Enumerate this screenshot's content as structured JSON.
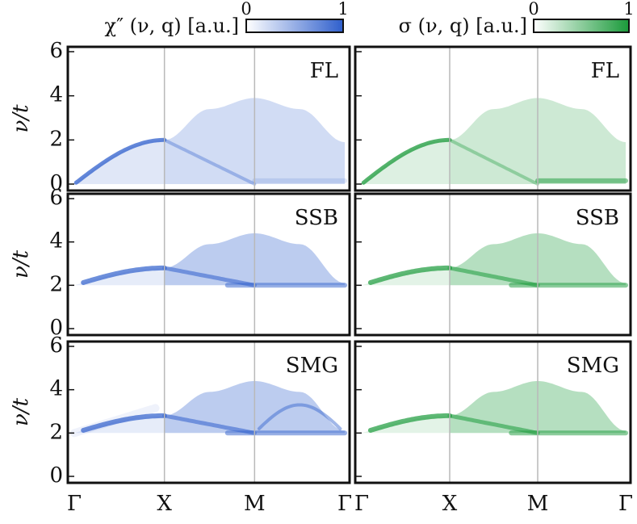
{
  "figure": {
    "colorbars": [
      {
        "title": "χ″ (ν, q) [a.u.]",
        "min_label": "0",
        "max_label": "1",
        "colors": [
          "#ffffff",
          "#2f5fcc"
        ]
      },
      {
        "title": "σ (ν, q) [a.u.]",
        "min_label": "0",
        "max_label": "1",
        "colors": [
          "#ffffff",
          "#1a9a3a"
        ]
      }
    ],
    "ylabel": "ν/t",
    "xticks": [
      "Γ",
      "X",
      "M",
      "Γ"
    ],
    "yticks": [
      "0",
      "2",
      "4",
      "6"
    ]
  },
  "chart_data": [
    {
      "type": "heatmap",
      "quantity": "χ″(ν,q)",
      "color": "#2f5fcc",
      "label": "FL",
      "ylim": [
        0,
        6
      ],
      "yticks": [
        0,
        2,
        4,
        6
      ],
      "xticks": [
        "Γ",
        "X",
        "M",
        "Γ"
      ],
      "gap": 0,
      "branches": [
        {
          "name": "X–M arc",
          "points": [
            [
              1.0,
              2.0
            ],
            [
              1.5,
              3.4
            ],
            [
              2.0,
              3.9
            ],
            [
              2.5,
              3.4
            ],
            [
              3.0,
              1.9
            ]
          ]
        }
      ]
    },
    {
      "type": "heatmap",
      "quantity": "σ(ν,q)",
      "color": "#1a9a3a",
      "label": "FL",
      "ylim": [
        0,
        6
      ],
      "yticks": [
        0,
        2,
        4,
        6
      ],
      "xticks": [
        "Γ",
        "X",
        "M",
        "Γ"
      ],
      "gap": 0,
      "branches": [
        {
          "name": "X–M arc",
          "points": [
            [
              1.0,
              2.0
            ],
            [
              1.5,
              3.4
            ],
            [
              2.0,
              3.9
            ],
            [
              2.5,
              3.4
            ],
            [
              3.0,
              1.9
            ]
          ]
        }
      ]
    },
    {
      "type": "heatmap",
      "quantity": "χ″(ν,q)",
      "color": "#2f5fcc",
      "label": "SSB",
      "ylim": [
        0,
        6
      ],
      "yticks": [
        0,
        2,
        4,
        6
      ],
      "xticks": [
        "Γ",
        "X",
        "M",
        "Γ"
      ],
      "gap": 2.0,
      "branches": [
        {
          "name": "X–M arc",
          "points": [
            [
              1.0,
              2.8
            ],
            [
              1.5,
              3.9
            ],
            [
              2.0,
              4.4
            ],
            [
              2.5,
              3.9
            ],
            [
              3.0,
              2.1
            ]
          ]
        }
      ]
    },
    {
      "type": "heatmap",
      "quantity": "σ(ν,q)",
      "color": "#1a9a3a",
      "label": "SSB",
      "ylim": [
        0,
        6
      ],
      "yticks": [
        0,
        2,
        4,
        6
      ],
      "xticks": [
        "Γ",
        "X",
        "M",
        "Γ"
      ],
      "gap": 2.0,
      "branches": [
        {
          "name": "X–M arc",
          "points": [
            [
              1.0,
              2.8
            ],
            [
              1.5,
              3.9
            ],
            [
              2.0,
              4.4
            ],
            [
              2.5,
              3.9
            ],
            [
              3.0,
              2.1
            ]
          ]
        }
      ]
    },
    {
      "type": "heatmap",
      "quantity": "χ″(ν,q)",
      "color": "#2f5fcc",
      "label": "SMG",
      "ylim": [
        0,
        6
      ],
      "yticks": [
        0,
        2,
        4,
        6
      ],
      "xticks": [
        "Γ",
        "X",
        "M",
        "Γ"
      ],
      "gap": 2.0,
      "branches": [
        {
          "name": "X–M arc",
          "points": [
            [
              1.0,
              2.8
            ],
            [
              1.5,
              3.9
            ],
            [
              2.0,
              4.4
            ],
            [
              2.5,
              3.9
            ],
            [
              3.0,
              2.1
            ]
          ]
        }
      ]
    },
    {
      "type": "heatmap",
      "quantity": "σ(ν,q)",
      "color": "#1a9a3a",
      "label": "SMG",
      "ylim": [
        0,
        6
      ],
      "yticks": [
        0,
        2,
        4,
        6
      ],
      "xticks": [
        "Γ",
        "X",
        "M",
        "Γ"
      ],
      "gap": 2.0,
      "branches": [
        {
          "name": "X–M arc",
          "points": [
            [
              1.0,
              2.8
            ],
            [
              1.5,
              3.9
            ],
            [
              2.0,
              4.4
            ],
            [
              2.5,
              3.9
            ],
            [
              3.0,
              2.1
            ]
          ]
        }
      ]
    }
  ]
}
